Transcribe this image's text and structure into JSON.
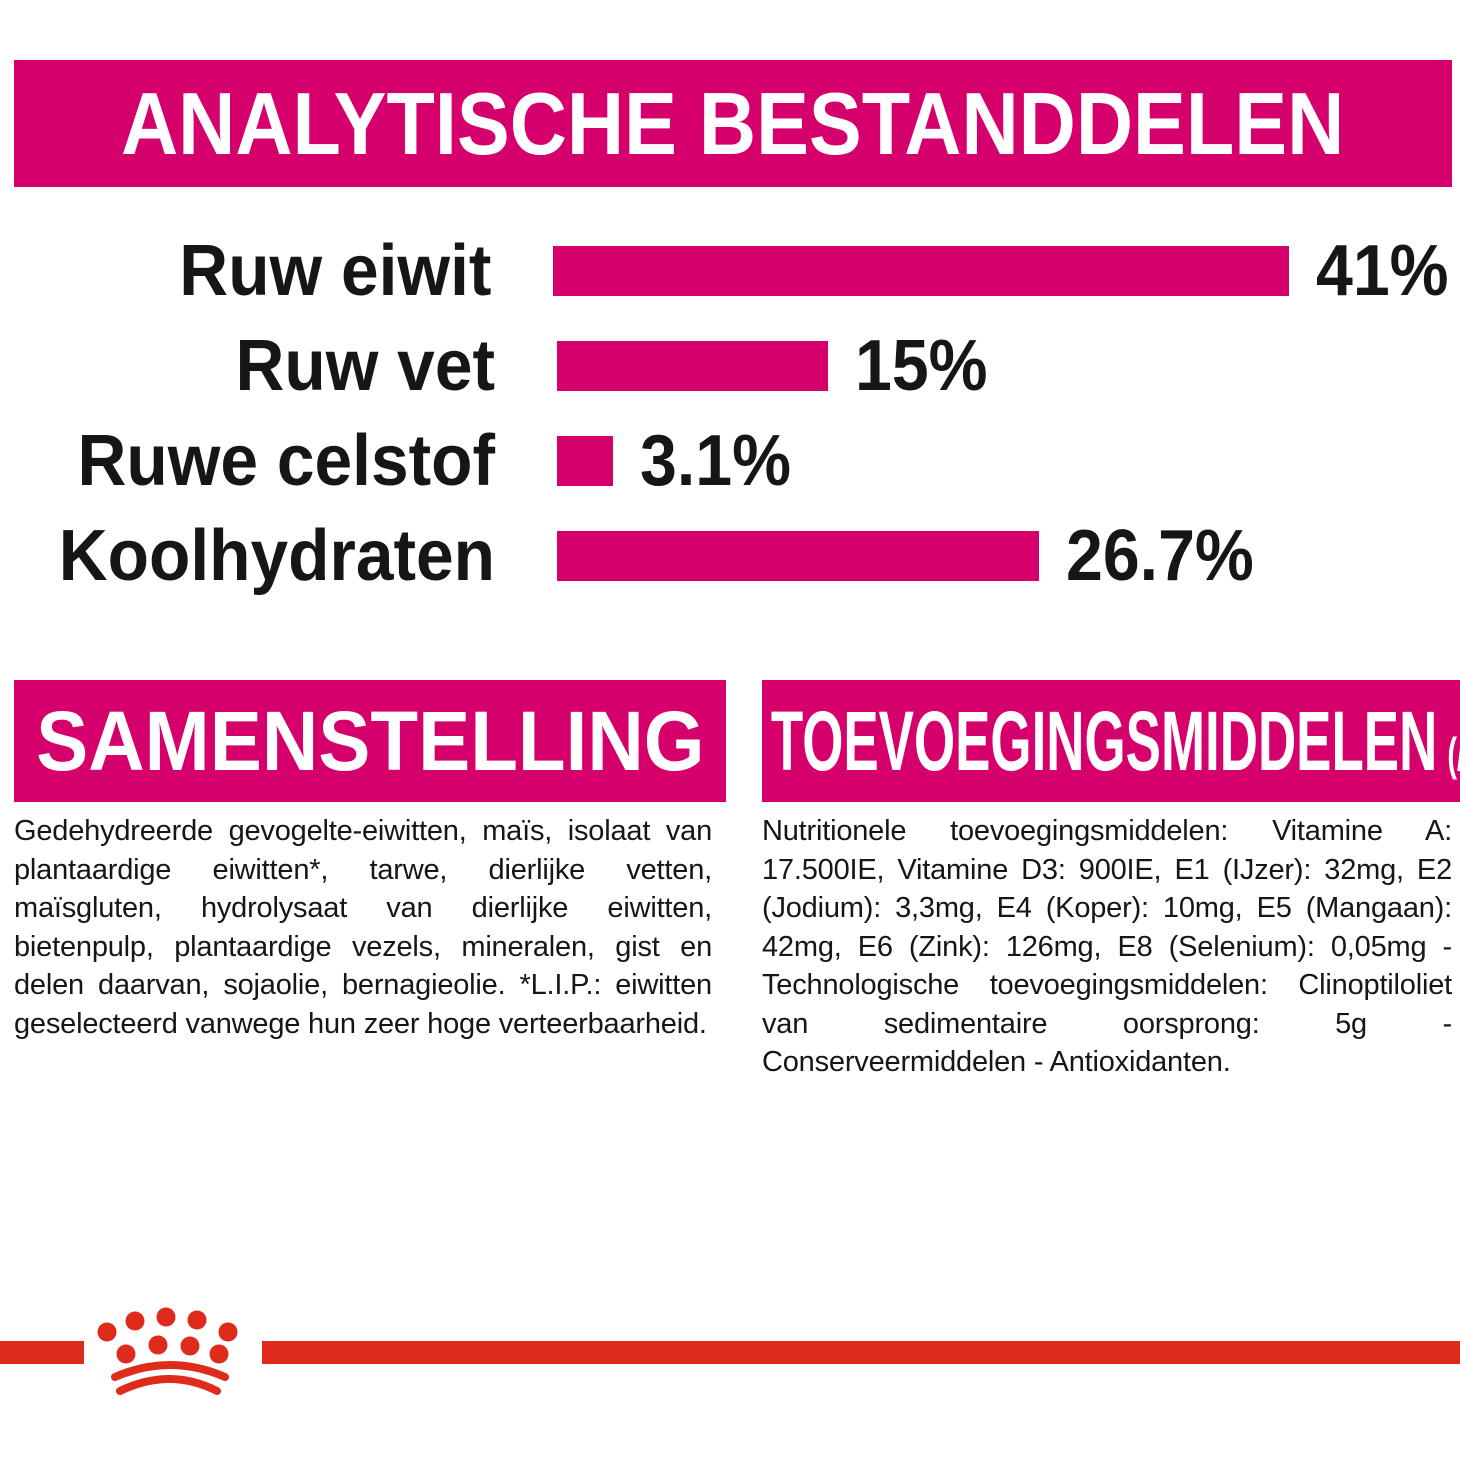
{
  "colors": {
    "magenta": "#D6006C",
    "red": "#DF2B1B",
    "text": "#161616",
    "header_text": "#FFFFFF"
  },
  "header": {
    "title": "ANALYTISCHE BESTANDDELEN"
  },
  "chart_data": {
    "type": "bar",
    "orientation": "horizontal",
    "title": "ANALYTISCHE BESTANDDELEN",
    "categories": [
      "Ruw eiwit",
      "Ruw vet",
      "Ruwe celstof",
      "Koolhydraten"
    ],
    "values": [
      41,
      15,
      3.1,
      26.7
    ],
    "value_labels": [
      "41%",
      "15%",
      "3.1%",
      "26.7%"
    ],
    "unit": "%",
    "xlim": [
      0,
      41
    ],
    "bar_color": "#D6006C",
    "grid": false,
    "legend": false
  },
  "sections": {
    "composition": {
      "title": "SAMENSTELLING",
      "body": "Gedehydreerde gevogelte-eiwitten, maïs, isolaat van plantaardige eiwitten*, tarwe, dierlijke vetten, maïsgluten, hydrolysaat van dierlijke eiwitten, bietenpulp, plantaardige vezels, mineralen, gist en delen daarvan, sojaolie, bernagieolie. *L.I.P.: eiwitten geselecteerd vanwege hun zeer hoge verteerbaarheid."
    },
    "additives": {
      "title": "TOEVOEGINGSMIDDELEN",
      "title_suffix": "(/kg)",
      "body": "Nutritionele toevoegingsmiddelen: Vitamine A: 17.500IE, Vitamine D3: 900IE, E1 (IJzer): 32mg, E2 (Jodium): 3,3mg, E4 (Koper): 10mg, E5 (Mangaan): 42mg, E6 (Zink): 126mg, E8 (Selenium): 0,05mg - Technologische toevoegingsmiddelen: Clinoptiloliet van sedimentaire oorsprong: 5g - Conserveermiddelen - Antioxidanten."
    }
  },
  "footer": {
    "brand_logo": "royal-canin-crown"
  }
}
